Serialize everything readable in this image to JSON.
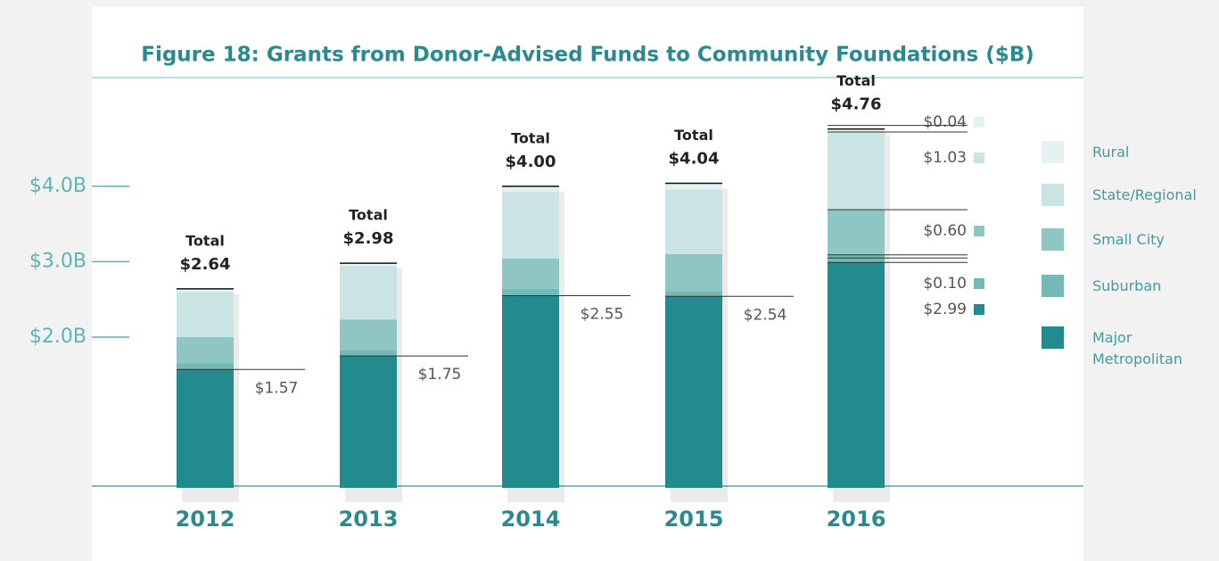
{
  "chart_data": {
    "type": "stacked_bar",
    "title": "Figure 18: Grants from Donor-Advised Funds to Community Foundations ($B)",
    "categories": [
      "2012",
      "2013",
      "2014",
      "2015",
      "2016"
    ],
    "series": [
      {
        "name": "Major Metropolitan",
        "color": "#238b8e",
        "values": [
          1.57,
          1.75,
          2.55,
          2.54,
          2.99
        ],
        "value_labels": [
          "$1.57",
          "$1.75",
          "$2.55",
          "$2.54",
          "$2.99"
        ]
      },
      {
        "name": "Suburban",
        "color": "#74b9b6",
        "values": [
          0.08,
          0.08,
          0.09,
          0.07,
          0.1
        ],
        "value_labels": [
          null,
          null,
          null,
          null,
          "$0.10"
        ]
      },
      {
        "name": "Small City",
        "color": "#8fc5c2",
        "values": [
          0.35,
          0.4,
          0.4,
          0.49,
          0.6
        ],
        "value_labels": [
          null,
          null,
          null,
          null,
          "$0.60"
        ]
      },
      {
        "name": "State/Regional",
        "color": "#c9e4e3",
        "values": [
          0.6,
          0.71,
          0.89,
          0.86,
          1.03
        ],
        "value_labels": [
          null,
          null,
          null,
          null,
          "$1.03"
        ]
      },
      {
        "name": "Rural",
        "color": "#e6f2f2",
        "values": [
          0.04,
          0.04,
          0.07,
          0.08,
          0.04
        ],
        "value_labels": [
          null,
          null,
          null,
          null,
          "$0.04"
        ]
      }
    ],
    "total_label": "Total",
    "totals": [
      2.64,
      2.98,
      4.0,
      4.04,
      4.76
    ],
    "total_labels": [
      "$2.64",
      "$2.98",
      "$4.00",
      "$4.04",
      "$4.76"
    ],
    "ylim": [
      0,
      5.3
    ],
    "yticks": [
      {
        "value": 2,
        "label": "$2.0B"
      },
      {
        "value": 3,
        "label": "$3.0B"
      },
      {
        "value": 4,
        "label": "$4.0B"
      }
    ]
  }
}
